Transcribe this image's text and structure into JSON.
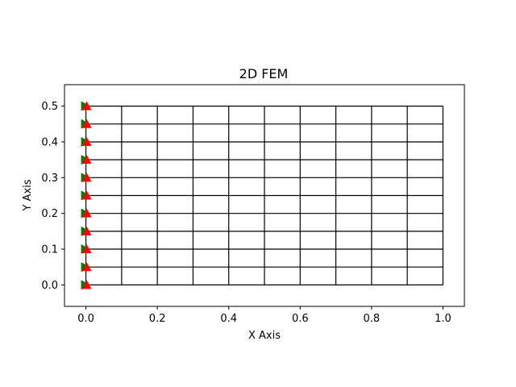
{
  "chart_data": {
    "type": "mesh",
    "title": "2D FEM",
    "xlabel": "X Axis",
    "ylabel": "Y Axis",
    "xlim": [
      -0.06,
      1.06
    ],
    "ylim": [
      -0.06,
      0.56
    ],
    "xticks": [
      0.0,
      0.2,
      0.4,
      0.6,
      0.8,
      1.0
    ],
    "xtick_labels": [
      "0.0",
      "0.2",
      "0.4",
      "0.6",
      "0.8",
      "1.0"
    ],
    "yticks": [
      0.0,
      0.1,
      0.2,
      0.3,
      0.4,
      0.5
    ],
    "ytick_labels": [
      "0.0",
      "0.1",
      "0.2",
      "0.3",
      "0.4",
      "0.5"
    ],
    "mesh": {
      "x_nodes": [
        0.0,
        0.1,
        0.2,
        0.3,
        0.4,
        0.5,
        0.6,
        0.7,
        0.8,
        0.9,
        1.0
      ],
      "y_nodes": [
        0.0,
        0.05,
        0.1,
        0.15,
        0.2,
        0.25,
        0.3,
        0.35,
        0.4,
        0.45,
        0.5
      ],
      "edge_color": "#000000"
    },
    "boundary_conditions": {
      "x": 0.0,
      "y_nodes": [
        0.0,
        0.05,
        0.1,
        0.15,
        0.2,
        0.25,
        0.3,
        0.35,
        0.4,
        0.45,
        0.5
      ],
      "x_support_marker": "triangle-right",
      "x_support_color": "#008000",
      "y_support_marker": "triangle-up",
      "y_support_color": "#ff0000"
    },
    "grid": false,
    "legend": "none"
  }
}
